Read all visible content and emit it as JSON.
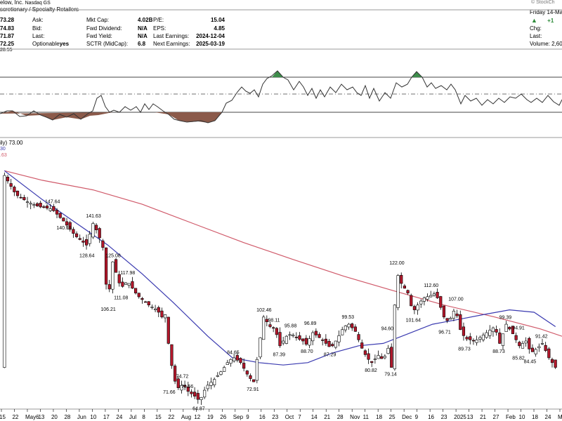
{
  "header": {
    "company": "elow, Inc.",
    "exchange": "Nasdaq GS",
    "sector": "scretionary / Specialty Retailers",
    "watermark": "© StockCh",
    "date": "Friday 14-Ma",
    "price_col": [
      "73.28",
      "74.83",
      "71.87",
      "72.25"
    ],
    "labels_col1": [
      "Ask:",
      "Bid:",
      "Last:",
      "Optionable"
    ],
    "optionable_value": "yes",
    "labels_col2": [
      "Mkt Cap:",
      "Fwd Dividend:",
      "Fwd Yield:",
      "SCTR (MidCap):"
    ],
    "values_col2": [
      "4.02B",
      "N/A",
      "N/A",
      "6.8"
    ],
    "labels_col3": [
      "P/E:",
      "EPS:",
      "Last Earnings:",
      "Next Earnings:"
    ],
    "values_col3": [
      "15.04",
      "4.85",
      "2024-12-04",
      "2025-03-19"
    ],
    "change_value": "+1",
    "right_labels": [
      "Chg:",
      "Last:"
    ],
    "volume_label": "Volume: 2,60",
    "indicator_value": "28.55"
  },
  "legend": {
    "line1": "ily) 73.00",
    "line2": "30",
    "line3": ".63"
  },
  "colors": {
    "sma50": "#3a3ab0",
    "sma200": "#d05a6a",
    "up_fill": "#ffffff",
    "down_fill": "#b5172b",
    "osc_line": "#333333",
    "osc_green": "#3d8c4a",
    "osc_brown": "#8b5a4a"
  },
  "chart_data": {
    "type": "candlestick",
    "data_labels": [
      {
        "value": "147.64",
        "anchor_date": "2024-05-07"
      },
      {
        "value": "140.19",
        "anchor_date": "2024-05-14"
      },
      {
        "value": "141.63",
        "anchor_date": "2024-06-01"
      },
      {
        "value": "128.64",
        "anchor_date": "2024-05-28"
      },
      {
        "value": "125.08",
        "anchor_date": "2024-06-13"
      },
      {
        "value": "117.98",
        "anchor_date": "2024-06-22"
      },
      {
        "value": "111.08",
        "anchor_date": "2024-06-18"
      },
      {
        "value": "106.21",
        "anchor_date": "2024-06-10"
      },
      {
        "value": "74.72",
        "anchor_date": "2024-07-26"
      },
      {
        "value": "71.66",
        "anchor_date": "2024-07-18"
      },
      {
        "value": "70.56",
        "anchor_date": "2024-07-29"
      },
      {
        "value": "64.87",
        "anchor_date": "2024-08-05"
      },
      {
        "value": "84.65",
        "anchor_date": "2024-08-26"
      },
      {
        "value": "72.91",
        "anchor_date": "2024-09-07"
      },
      {
        "value": "102.46",
        "anchor_date": "2024-09-13"
      },
      {
        "value": "98.11",
        "anchor_date": "2024-09-20"
      },
      {
        "value": "95.88",
        "anchor_date": "2024-09-30"
      },
      {
        "value": "87.39",
        "anchor_date": "2024-09-23"
      },
      {
        "value": "96.89",
        "anchor_date": "2024-10-12"
      },
      {
        "value": "88.70",
        "anchor_date": "2024-10-10"
      },
      {
        "value": "87.29",
        "anchor_date": "2024-10-24"
      },
      {
        "value": "99.53",
        "anchor_date": "2024-11-04"
      },
      {
        "value": "80.82",
        "anchor_date": "2024-11-18"
      },
      {
        "value": "79.14",
        "anchor_date": "2024-11-30"
      },
      {
        "value": "94.60",
        "anchor_date": "2024-11-28"
      },
      {
        "value": "122.00",
        "anchor_date": "2024-12-03"
      },
      {
        "value": "101.64",
        "anchor_date": "2024-12-13"
      },
      {
        "value": "112.60",
        "anchor_date": "2024-12-24"
      },
      {
        "value": "107.00",
        "anchor_date": "2025-01-08"
      },
      {
        "value": "96.71",
        "anchor_date": "2025-01-02"
      },
      {
        "value": "89.73",
        "anchor_date": "2025-01-14"
      },
      {
        "value": "99.39",
        "anchor_date": "2025-02-08"
      },
      {
        "value": "94.91",
        "anchor_date": "2025-02-16"
      },
      {
        "value": "91.42",
        "anchor_date": "2025-03-02"
      },
      {
        "value": "88.73",
        "anchor_date": "2025-02-04"
      },
      {
        "value": "85.82",
        "anchor_date": "2025-02-16"
      },
      {
        "value": "84.45",
        "anchor_date": "2025-02-23"
      }
    ],
    "x_ticks": [
      "15",
      "22",
      "May6",
      "13",
      "20",
      "28",
      "Jun",
      "10",
      "17",
      "24",
      "Jul",
      "8",
      "15",
      "22",
      "Aug",
      "12",
      "19",
      "26",
      "Sep",
      "9",
      "16",
      "23",
      "Oct",
      "7",
      "14",
      "21",
      "28",
      "Nov",
      "11",
      "18",
      "25",
      "Dec",
      "9",
      "16",
      "23",
      "2025",
      "13",
      "21",
      "27",
      "Feb",
      "10",
      "18",
      "24",
      "Ma"
    ],
    "price_path": [
      [
        "2024-04-08",
        160
      ],
      [
        "2024-04-15",
        152
      ],
      [
        "2024-04-22",
        149
      ],
      [
        "2024-04-29",
        147
      ],
      [
        "2024-05-07",
        146
      ],
      [
        "2024-05-14",
        141
      ],
      [
        "2024-05-21",
        135
      ],
      [
        "2024-05-28",
        131
      ],
      [
        "2024-06-01",
        140
      ],
      [
        "2024-06-04",
        136
      ],
      [
        "2024-06-07",
        130
      ],
      [
        "2024-06-10",
        107
      ],
      [
        "2024-06-13",
        124
      ],
      [
        "2024-06-18",
        113
      ],
      [
        "2024-06-22",
        116
      ],
      [
        "2024-06-28",
        110
      ],
      [
        "2024-07-05",
        106
      ],
      [
        "2024-07-10",
        104
      ],
      [
        "2024-07-13",
        101
      ],
      [
        "2024-07-15",
        102
      ],
      [
        "2024-07-18",
        84
      ],
      [
        "2024-07-22",
        71
      ],
      [
        "2024-07-26",
        73
      ],
      [
        "2024-07-29",
        70
      ],
      [
        "2024-08-02",
        68
      ],
      [
        "2024-08-05",
        66
      ],
      [
        "2024-08-09",
        72
      ],
      [
        "2024-08-14",
        75
      ],
      [
        "2024-08-19",
        79
      ],
      [
        "2024-08-23",
        83
      ],
      [
        "2024-08-26",
        84
      ],
      [
        "2024-08-30",
        82
      ],
      [
        "2024-09-04",
        76
      ],
      [
        "2024-09-07",
        74
      ],
      [
        "2024-09-10",
        88
      ],
      [
        "2024-09-13",
        101
      ],
      [
        "2024-09-17",
        97
      ],
      [
        "2024-09-20",
        96
      ],
      [
        "2024-09-23",
        89
      ],
      [
        "2024-09-27",
        93
      ],
      [
        "2024-09-30",
        94
      ],
      [
        "2024-10-04",
        92
      ],
      [
        "2024-10-07",
        91
      ],
      [
        "2024-10-10",
        89
      ],
      [
        "2024-10-12",
        95
      ],
      [
        "2024-10-16",
        93
      ],
      [
        "2024-10-21",
        90
      ],
      [
        "2024-10-24",
        88
      ],
      [
        "2024-10-28",
        92
      ],
      [
        "2024-11-01",
        97
      ],
      [
        "2024-11-04",
        98
      ],
      [
        "2024-11-08",
        95
      ],
      [
        "2024-11-12",
        88
      ],
      [
        "2024-11-15",
        84
      ],
      [
        "2024-11-18",
        82
      ],
      [
        "2024-11-22",
        85
      ],
      [
        "2024-11-25",
        83
      ],
      [
        "2024-11-28",
        88
      ],
      [
        "2024-11-30",
        80
      ],
      [
        "2024-12-01",
        92
      ],
      [
        "2024-12-03",
        120
      ],
      [
        "2024-12-06",
        115
      ],
      [
        "2024-12-10",
        111
      ],
      [
        "2024-12-13",
        103
      ],
      [
        "2024-12-17",
        107
      ],
      [
        "2024-12-20",
        109
      ],
      [
        "2024-12-24",
        110
      ],
      [
        "2024-12-27",
        111
      ],
      [
        "2025-01-02",
        99
      ],
      [
        "2025-01-06",
        101
      ],
      [
        "2025-01-08",
        106
      ],
      [
        "2025-01-10",
        97
      ],
      [
        "2025-01-14",
        92
      ],
      [
        "2025-01-20",
        91
      ],
      [
        "2025-01-24",
        93
      ],
      [
        "2025-01-28",
        95
      ],
      [
        "2025-02-01",
        97
      ],
      [
        "2025-02-04",
        90
      ],
      [
        "2025-02-08",
        98
      ],
      [
        "2025-02-12",
        94
      ],
      [
        "2025-02-16",
        89
      ],
      [
        "2025-02-20",
        91
      ],
      [
        "2025-02-23",
        86
      ],
      [
        "2025-02-27",
        88
      ],
      [
        "2025-03-02",
        90
      ],
      [
        "2025-03-06",
        84
      ],
      [
        "2025-03-10",
        80
      ]
    ],
    "sma50": [
      [
        "2024-04-08",
        162
      ],
      [
        "2024-05-01",
        150
      ],
      [
        "2024-05-20",
        141
      ],
      [
        "2024-06-10",
        131
      ],
      [
        "2024-07-01",
        119
      ],
      [
        "2024-07-20",
        107
      ],
      [
        "2024-08-10",
        93
      ],
      [
        "2024-08-25",
        84
      ],
      [
        "2024-09-10",
        82
      ],
      [
        "2024-09-25",
        81
      ],
      [
        "2024-10-10",
        82
      ],
      [
        "2024-10-25",
        86
      ],
      [
        "2024-11-10",
        89
      ],
      [
        "2024-11-25",
        90
      ],
      [
        "2024-12-10",
        94
      ],
      [
        "2024-12-25",
        98
      ],
      [
        "2025-01-10",
        100
      ],
      [
        "2025-01-25",
        102
      ],
      [
        "2025-02-10",
        104
      ],
      [
        "2025-02-25",
        103
      ],
      [
        "2025-03-10",
        97
      ]
    ],
    "sma200": [
      [
        "2024-04-08",
        162
      ],
      [
        "2024-05-01",
        158
      ],
      [
        "2024-06-01",
        154
      ],
      [
        "2024-07-01",
        148
      ],
      [
        "2024-08-01",
        140
      ],
      [
        "2024-09-01",
        132
      ],
      [
        "2024-10-01",
        125
      ],
      [
        "2024-11-01",
        118
      ],
      [
        "2024-12-01",
        112
      ],
      [
        "2025-01-01",
        106
      ],
      [
        "2025-02-01",
        101
      ],
      [
        "2025-03-01",
        96
      ],
      [
        "2025-03-14",
        93
      ]
    ]
  }
}
